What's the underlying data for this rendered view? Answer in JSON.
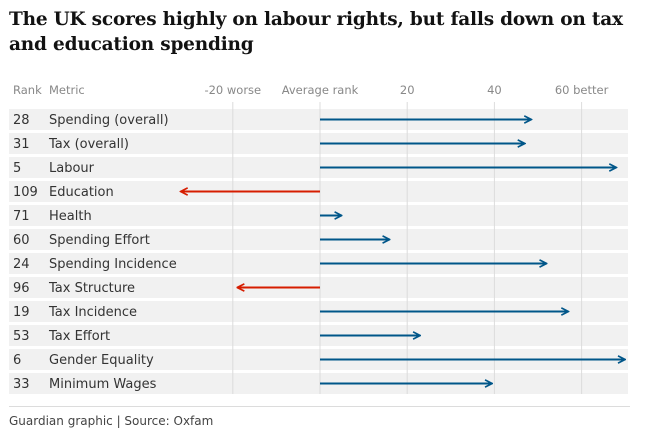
{
  "title": "The UK scores highly on labour rights, but falls down on tax and education spending",
  "source": "Guardian graphic | Source: Oxfam",
  "chart_data": {
    "type": "bar",
    "title": "The UK scores highly on labour rights, but falls down on tax and education spending",
    "column_headers": {
      "rank": "Rank",
      "metric": "Metric"
    },
    "x_ticks": [
      {
        "value": -20,
        "label": "-20 worse"
      },
      {
        "value": 0,
        "label": "Average rank"
      },
      {
        "value": 20,
        "label": "20"
      },
      {
        "value": 40,
        "label": "40"
      },
      {
        "value": 60,
        "label": "60 better"
      }
    ],
    "xlim": [
      -26,
      71
    ],
    "grid": true,
    "colors": {
      "positive": "#005689",
      "negative": "#d61d00",
      "band": "#f1f1f1",
      "grid": "#dcdcdc"
    },
    "rows": [
      {
        "rank": "28",
        "metric": "Spending (overall)",
        "value": 48.5
      },
      {
        "rank": "31",
        "metric": "Tax (overall)",
        "value": 47
      },
      {
        "rank": "5",
        "metric": "Labour",
        "value": 68
      },
      {
        "rank": "109",
        "metric": "Education",
        "value": -32
      },
      {
        "rank": "71",
        "metric": "Health",
        "value": 5
      },
      {
        "rank": "60",
        "metric": "Spending Effort",
        "value": 16
      },
      {
        "rank": "24",
        "metric": "Spending Incidence",
        "value": 52
      },
      {
        "rank": "96",
        "metric": "Tax Structure",
        "value": -19
      },
      {
        "rank": "19",
        "metric": "Tax Incidence",
        "value": 57
      },
      {
        "rank": "53",
        "metric": "Tax Effort",
        "value": 23
      },
      {
        "rank": "6",
        "metric": "Gender Equality",
        "value": 70
      },
      {
        "rank": "33",
        "metric": "Minimum Wages",
        "value": 39.5
      }
    ]
  }
}
